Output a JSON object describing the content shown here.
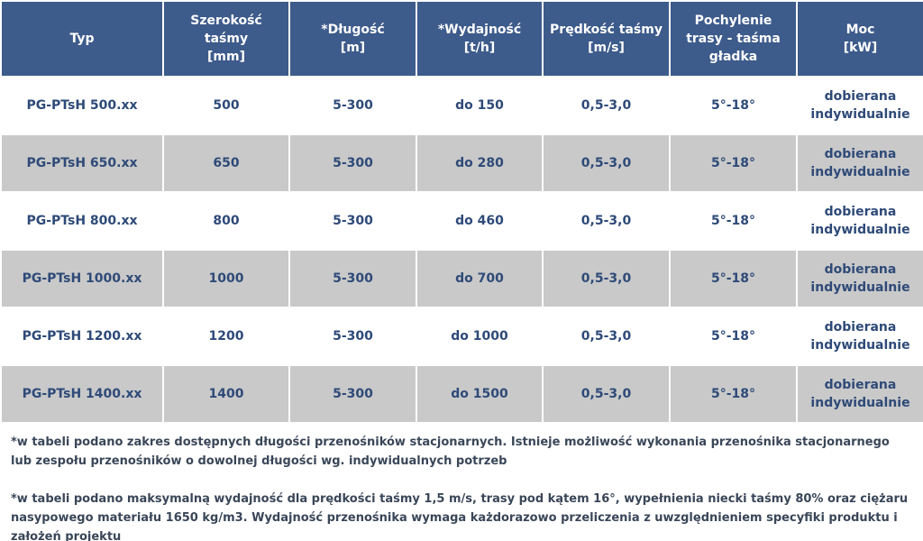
{
  "table": {
    "header": [
      [
        "Typ"
      ],
      [
        "Szerokość",
        "taśmy",
        "[mm]"
      ],
      [
        "*Długość",
        "[m]"
      ],
      [
        "*Wydajność",
        "[t/h]"
      ],
      [
        "Prędkość taśmy",
        "[m/s]"
      ],
      [
        "Pochylenie",
        "trasy - taśma",
        "gładka"
      ],
      [
        "Moc",
        "[kW]"
      ]
    ],
    "rows": [
      [
        "PG-PTsH 500.xx",
        "500",
        "5-300",
        "do 150",
        "0,5-3,0",
        "5°-18°",
        "dobierana indywidualnie"
      ],
      [
        "PG-PTsH 650.xx",
        "650",
        "5-300",
        "do 280",
        "0,5-3,0",
        "5°-18°",
        "dobierana indywidualnie"
      ],
      [
        "PG-PTsH 800.xx",
        "800",
        "5-300",
        "do 460",
        "0,5-3,0",
        "5°-18°",
        "dobierana indywidualnie"
      ],
      [
        "PG-PTsH 1000.xx",
        "1000",
        "5-300",
        "do 700",
        "0,5-3,0",
        "5°-18°",
        "dobierana indywidualnie"
      ],
      [
        "PG-PTsH 1200.xx",
        "1200",
        "5-300",
        "do 1000",
        "0,5-3,0",
        "5°-18°",
        "dobierana indywidualnie"
      ],
      [
        "PG-PTsH 1400.xx",
        "1400",
        "5-300",
        "do 1500",
        "0,5-3,0",
        "5°-18°",
        "dobierana indywidualnie"
      ]
    ]
  },
  "notes": [
    "*w tabeli podano zakres dostępnych długości przenośników stacjonarnych. Istnieje możliwość wykonania przenośnika stacjonarnego lub zespołu przenośników o dowolnej długości wg. indywidualnych potrzeb",
    "*w tabeli podano maksymalną wydajność dla prędkości taśmy 1,5 m/s, trasy pod kątem 16°, wypełnienia niecki taśmy 80% oraz ciężaru nasypowego materiału 1650 kg/m3. Wydajność przenośnika wymaga każdorazowo przeliczenia z uwzględnieniem specyfiki produktu i założeń projektu"
  ]
}
